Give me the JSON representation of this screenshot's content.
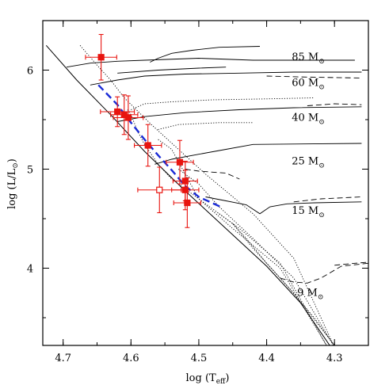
{
  "chart_data": {
    "type": "scatter",
    "title": "",
    "xlabel": "log (T",
    "xlabel_sub": "eff",
    "xlabel_tail": ")",
    "ylabel": "log (L/L",
    "ylabel_sub": "⊙",
    "ylabel_tail": ")",
    "xlim": [
      4.73,
      4.25
    ],
    "ylim": [
      3.22,
      6.5
    ],
    "x_reversed": true,
    "grid": false,
    "x_ticks": [
      {
        "value": 4.7,
        "label": "4.7"
      },
      {
        "value": 4.6,
        "label": "4.6"
      },
      {
        "value": 4.5,
        "label": "4.5"
      },
      {
        "value": 4.4,
        "label": "4.4"
      },
      {
        "value": 4.3,
        "label": "4.3"
      }
    ],
    "y_ticks": [
      {
        "value": 4,
        "label": "4"
      },
      {
        "value": 5,
        "label": "5"
      },
      {
        "value": 6,
        "label": "6"
      }
    ],
    "colors": {
      "data": "#e8140f",
      "fit": "#1a2bd6",
      "tracks": "#000000"
    },
    "mass_labels": [
      {
        "num": "85",
        "unit": "M",
        "sub": "⊙",
        "x": 4.363,
        "y": 6.14
      },
      {
        "num": "60",
        "unit": "M",
        "sub": "⊙",
        "x": 4.363,
        "y": 5.88
      },
      {
        "num": "40",
        "unit": "M",
        "sub": "⊙",
        "x": 4.363,
        "y": 5.53
      },
      {
        "num": "25",
        "unit": "M",
        "sub": "⊙",
        "x": 4.363,
        "y": 5.09
      },
      {
        "num": "15",
        "unit": "M",
        "sub": "⊙",
        "x": 4.363,
        "y": 4.59
      },
      {
        "num": "9",
        "unit": "M",
        "sub": "⊙",
        "x": 4.355,
        "y": 3.76
      }
    ],
    "zams": [
      [
        4.725,
        6.25
      ],
      [
        4.68,
        5.9
      ],
      [
        4.63,
        5.55
      ],
      [
        4.58,
        5.18
      ],
      [
        4.52,
        4.78
      ],
      [
        4.46,
        4.4
      ],
      [
        4.4,
        4.02
      ],
      [
        4.35,
        3.65
      ],
      [
        4.305,
        3.2
      ]
    ],
    "tracks": [
      {
        "style": "solid",
        "points": [
          [
            4.695,
            6.03
          ],
          [
            4.66,
            6.07
          ],
          [
            4.62,
            6.09
          ],
          [
            4.58,
            6.1
          ],
          [
            4.5,
            6.12
          ],
          [
            4.42,
            6.1
          ],
          [
            4.27,
            6.1
          ]
        ]
      },
      {
        "style": "solid",
        "points": [
          [
            4.572,
            6.08
          ],
          [
            4.56,
            6.12
          ],
          [
            4.54,
            6.17
          ],
          [
            4.51,
            6.2
          ],
          [
            4.47,
            6.23
          ],
          [
            4.41,
            6.24
          ]
        ]
      },
      {
        "style": "dotted",
        "points": [
          [
            4.675,
            6.25
          ],
          [
            4.65,
            6.05
          ],
          [
            4.63,
            5.9
          ],
          [
            4.61,
            5.72
          ],
          [
            4.57,
            5.45
          ],
          [
            4.53,
            5.2
          ],
          [
            4.49,
            4.95
          ],
          [
            4.42,
            4.55
          ],
          [
            4.36,
            4.1
          ],
          [
            4.3,
            3.2
          ]
        ]
      },
      {
        "style": "solid",
        "points": [
          [
            4.66,
            5.85
          ],
          [
            4.62,
            5.9
          ],
          [
            4.58,
            5.94
          ],
          [
            4.52,
            5.96
          ],
          [
            4.44,
            5.97
          ],
          [
            4.36,
            5.98
          ],
          [
            4.26,
            5.98
          ]
        ]
      },
      {
        "style": "solid",
        "points": [
          [
            4.62,
            5.97
          ],
          [
            4.56,
            6.0
          ],
          [
            4.5,
            6.02
          ],
          [
            4.46,
            6.03
          ]
        ]
      },
      {
        "style": "dashed",
        "points": [
          [
            4.4,
            5.94
          ],
          [
            4.34,
            5.93
          ],
          [
            4.26,
            5.92
          ]
        ]
      },
      {
        "style": "dotted",
        "points": [
          [
            4.605,
            5.6
          ],
          [
            4.6,
            5.55
          ],
          [
            4.59,
            5.38
          ],
          [
            4.58,
            5.25
          ],
          [
            4.56,
            5.05
          ],
          [
            4.54,
            4.9
          ],
          [
            4.5,
            4.7
          ],
          [
            4.44,
            4.4
          ],
          [
            4.38,
            4.05
          ],
          [
            4.31,
            3.2
          ]
        ]
      },
      {
        "style": "dotted",
        "points": [
          [
            4.6,
            5.6
          ],
          [
            4.58,
            5.66
          ],
          [
            4.54,
            5.68
          ],
          [
            4.48,
            5.7
          ],
          [
            4.4,
            5.71
          ],
          [
            4.33,
            5.72
          ]
        ]
      },
      {
        "style": "solid",
        "points": [
          [
            4.62,
            5.48
          ],
          [
            4.58,
            5.53
          ],
          [
            4.52,
            5.57
          ],
          [
            4.44,
            5.6
          ],
          [
            4.36,
            5.62
          ],
          [
            4.26,
            5.63
          ]
        ]
      },
      {
        "style": "dashed",
        "points": [
          [
            4.34,
            5.64
          ],
          [
            4.3,
            5.66
          ],
          [
            4.26,
            5.65
          ]
        ]
      },
      {
        "style": "dotted",
        "points": [
          [
            4.56,
            5.3
          ],
          [
            4.54,
            5.2
          ],
          [
            4.52,
            4.95
          ],
          [
            4.5,
            4.7
          ],
          [
            4.45,
            4.4
          ],
          [
            4.38,
            4.0
          ],
          [
            4.31,
            3.2
          ]
        ]
      },
      {
        "style": "dotted",
        "points": [
          [
            4.56,
            5.4
          ],
          [
            4.53,
            5.45
          ],
          [
            4.47,
            5.47
          ],
          [
            4.42,
            5.47
          ]
        ]
      },
      {
        "style": "solid",
        "points": [
          [
            4.565,
            5.05
          ],
          [
            4.54,
            5.1
          ],
          [
            4.5,
            5.15
          ],
          [
            4.46,
            5.2
          ],
          [
            4.42,
            5.25
          ],
          [
            4.26,
            5.26
          ]
        ]
      },
      {
        "style": "dashed",
        "points": [
          [
            4.52,
            5.0
          ],
          [
            4.5,
            4.98
          ],
          [
            4.46,
            4.96
          ],
          [
            4.44,
            4.9
          ]
        ]
      },
      {
        "style": "dotted",
        "points": [
          [
            4.53,
            5.0
          ],
          [
            4.5,
            4.85
          ],
          [
            4.47,
            4.62
          ],
          [
            4.42,
            4.3
          ],
          [
            4.36,
            3.9
          ],
          [
            4.3,
            3.2
          ]
        ]
      },
      {
        "style": "solid",
        "points": [
          [
            4.49,
            4.72
          ],
          [
            4.46,
            4.68
          ],
          [
            4.43,
            4.64
          ],
          [
            4.41,
            4.55
          ],
          [
            4.395,
            4.62
          ],
          [
            4.37,
            4.65
          ],
          [
            4.33,
            4.66
          ],
          [
            4.26,
            4.67
          ]
        ]
      },
      {
        "style": "dashed",
        "points": [
          [
            4.36,
            4.67
          ],
          [
            4.32,
            4.7
          ],
          [
            4.26,
            4.72
          ]
        ]
      },
      {
        "style": "dotted",
        "points": [
          [
            4.47,
            4.55
          ],
          [
            4.45,
            4.45
          ],
          [
            4.42,
            4.2
          ],
          [
            4.38,
            3.9
          ],
          [
            4.33,
            3.5
          ],
          [
            4.3,
            3.22
          ]
        ]
      },
      {
        "style": "dotted",
        "points": [
          [
            4.45,
            4.45
          ],
          [
            4.43,
            4.3
          ],
          [
            4.4,
            4.05
          ],
          [
            4.36,
            3.75
          ],
          [
            4.3,
            3.22
          ]
        ]
      },
      {
        "style": "dashed",
        "points": [
          [
            4.38,
            3.9
          ],
          [
            4.36,
            3.86
          ],
          [
            4.34,
            3.85
          ],
          [
            4.32,
            3.9
          ],
          [
            4.29,
            4.02
          ],
          [
            4.25,
            4.05
          ]
        ]
      },
      {
        "style": "dashed",
        "points": [
          [
            4.3,
            4.03
          ],
          [
            4.27,
            4.05
          ],
          [
            4.25,
            4.06
          ]
        ]
      }
    ],
    "fit_line": [
      [
        4.648,
        5.85
      ],
      [
        4.62,
        5.65
      ],
      [
        4.6,
        5.47
      ],
      [
        4.58,
        5.3
      ],
      [
        4.56,
        5.14
      ],
      [
        4.54,
        4.99
      ],
      [
        4.52,
        4.83
      ],
      [
        4.5,
        4.72
      ],
      [
        4.468,
        4.62
      ]
    ],
    "points": [
      {
        "x": 4.644,
        "y": 6.13,
        "xerr": 0.023,
        "yerr": 0.23,
        "filled": true
      },
      {
        "x": 4.62,
        "y": 5.58,
        "xerr": 0.025,
        "yerr": 0.15,
        "filled": true
      },
      {
        "x": 4.61,
        "y": 5.55,
        "xerr": 0.02,
        "yerr": 0.2,
        "filled": true
      },
      {
        "x": 4.604,
        "y": 5.52,
        "xerr": 0.022,
        "yerr": 0.22,
        "filled": true
      },
      {
        "x": 4.575,
        "y": 5.24,
        "xerr": 0.02,
        "yerr": 0.21,
        "filled": true
      },
      {
        "x": 4.528,
        "y": 5.07,
        "xerr": 0.02,
        "yerr": 0.22,
        "filled": true
      },
      {
        "x": 4.52,
        "y": 4.88,
        "xerr": 0.018,
        "yerr": 0.2,
        "filled": true
      },
      {
        "x": 4.52,
        "y": 4.79,
        "xerr": 0.02,
        "yerr": 0.2,
        "filled": true
      },
      {
        "x": 4.517,
        "y": 4.66,
        "xerr": 0.02,
        "yerr": 0.25,
        "filled": true
      },
      {
        "x": 4.558,
        "y": 4.79,
        "xerr": 0.032,
        "yerr": 0.23,
        "filled": false
      }
    ]
  }
}
